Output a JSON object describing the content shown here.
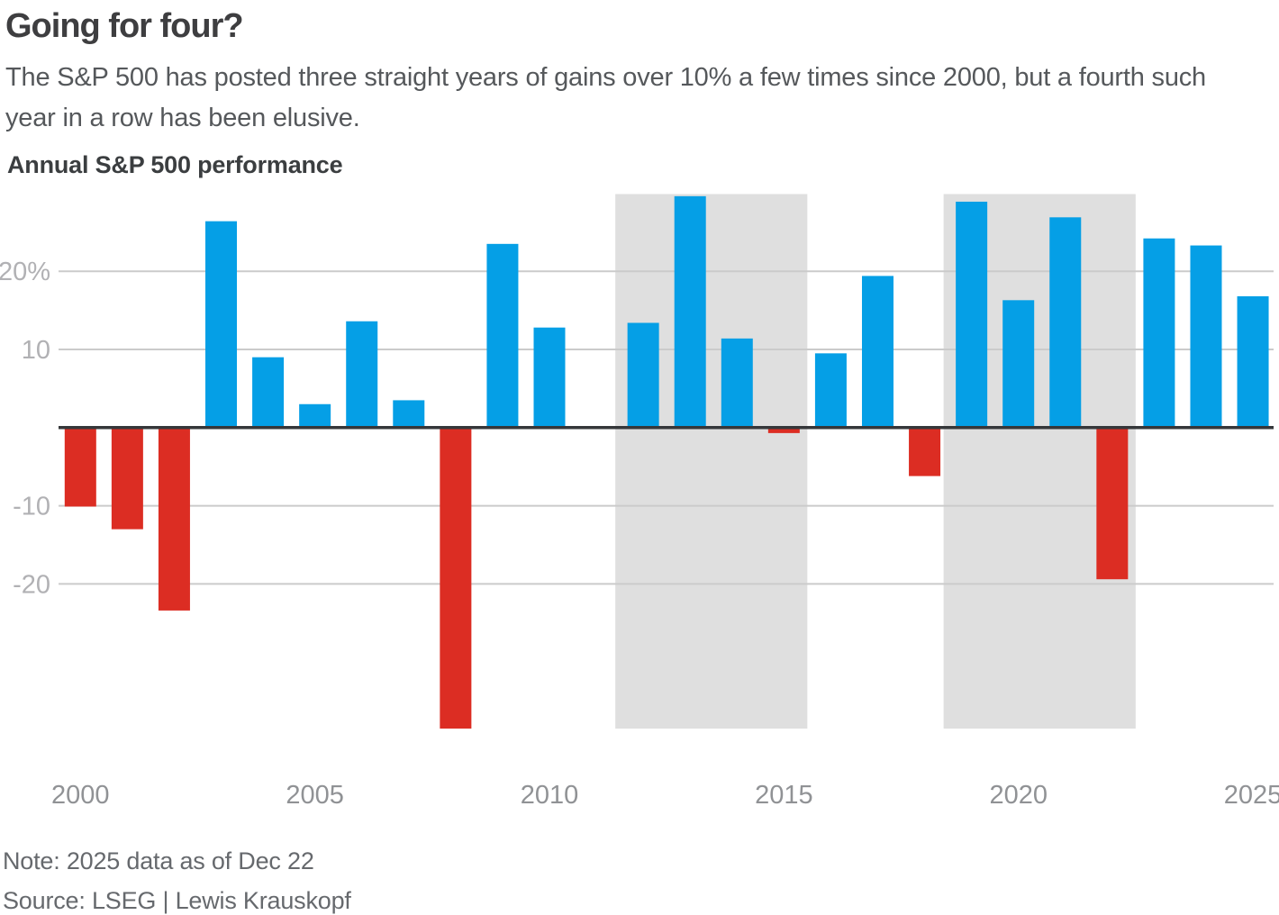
{
  "header": {
    "title": "Going for four?",
    "subtitle": "The S&P 500 has posted three straight years of gains over 10% a few times since 2000, but a fourth such year in a row has been elusive."
  },
  "footer": {
    "note": "Note: 2025 data as of Dec 22",
    "source": "Source: LSEG | Lewis Krauskopf"
  },
  "chart_data": {
    "type": "bar",
    "title": "Annual S&P 500 performance",
    "series_name": "Annual S&P 500 return (%)",
    "unit": "%",
    "x": [
      2000,
      2001,
      2002,
      2003,
      2004,
      2005,
      2006,
      2007,
      2008,
      2009,
      2010,
      2011,
      2012,
      2013,
      2014,
      2015,
      2016,
      2017,
      2018,
      2019,
      2020,
      2021,
      2022,
      2023,
      2024,
      2025
    ],
    "values": [
      -10.1,
      -13.0,
      -23.4,
      26.4,
      9.0,
      3.0,
      13.6,
      3.5,
      -38.5,
      23.5,
      12.8,
      0.0,
      13.4,
      29.6,
      11.4,
      -0.7,
      9.5,
      19.4,
      -6.2,
      28.9,
      16.3,
      26.9,
      -19.4,
      24.2,
      23.3,
      16.8
    ],
    "ylim": [
      -38.5,
      29.8
    ],
    "grid": true,
    "legend": false,
    "yticks": [
      {
        "v": 20,
        "label": "20%"
      },
      {
        "v": 10,
        "label": "10"
      },
      {
        "v": -10,
        "label": "-10"
      },
      {
        "v": -20,
        "label": "-20"
      }
    ],
    "xticks": [
      2000,
      2005,
      2010,
      2015,
      2020,
      2025
    ],
    "highlight_bands": [
      {
        "from_year": 2012,
        "to_year": 2015
      },
      {
        "from_year": 2019,
        "to_year": 2022
      }
    ],
    "colors": {
      "positive": "#059fe6",
      "negative": "#dc2d23",
      "band": "#dfdfdf",
      "gridline": "#cbcbcb",
      "zero_line": "#35373a",
      "y_tick_label": "#b1b1b4",
      "x_tick_label": "#909295"
    }
  }
}
